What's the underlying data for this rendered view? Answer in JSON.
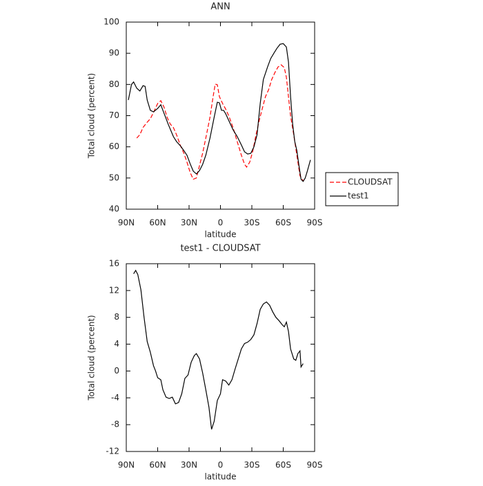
{
  "chart_data": [
    {
      "type": "line",
      "title": "ANN",
      "xlabel": "latitude",
      "ylabel": "Total cloud (percent)",
      "xlim": [
        90,
        -90
      ],
      "xticks": [
        {
          "value": 90,
          "label": "90N"
        },
        {
          "value": 60,
          "label": "60N"
        },
        {
          "value": 30,
          "label": "30N"
        },
        0,
        {
          "value": -30,
          "label": "30S"
        },
        {
          "value": -60,
          "label": "60S"
        },
        {
          "value": -90,
          "label": "90S"
        }
      ],
      "ylim": [
        40,
        100
      ],
      "yticks": [
        40,
        50,
        60,
        70,
        80,
        90,
        100
      ],
      "legend": "right",
      "series": [
        {
          "name": "CLOUDSAT",
          "color": "#ff0000",
          "dashed": true,
          "x": [
            80,
            77,
            74,
            70,
            67,
            64,
            60,
            57,
            54,
            51,
            48,
            45,
            42,
            38,
            35,
            32,
            29,
            26,
            23,
            20,
            17,
            14,
            10,
            7,
            5,
            3,
            1,
            -2,
            -5,
            -8,
            -12,
            -16,
            -20,
            -23,
            -25,
            -28,
            -31,
            -34,
            -37,
            -40,
            -43,
            -46,
            -49,
            -52,
            -55,
            -58,
            -61,
            -63,
            -65,
            -67,
            -70,
            -73,
            -76,
            -79
          ],
          "values": [
            62.8,
            63.9,
            66.2,
            67.9,
            69,
            71,
            73.9,
            74.8,
            72.8,
            69.5,
            67.3,
            66.2,
            63.9,
            60.2,
            58,
            55.1,
            51.8,
            49.6,
            50,
            54,
            58,
            62.8,
            69.5,
            76.1,
            80.1,
            79.9,
            76.1,
            73.9,
            72.1,
            69.9,
            66.2,
            61.7,
            57.3,
            54.4,
            53.5,
            55.1,
            58.8,
            63.9,
            68.4,
            72.3,
            76.1,
            78.3,
            81.6,
            83.8,
            85.6,
            86.3,
            85.4,
            82.3,
            76.1,
            69.9,
            63.9,
            57.3,
            50.7,
            49.1
          ]
        },
        {
          "name": "test1",
          "color": "#000000",
          "dashed": false,
          "x": [
            88,
            85,
            83,
            80,
            77,
            74,
            72,
            70,
            67,
            64,
            60,
            57,
            55,
            50,
            45,
            42,
            38,
            35,
            32,
            29,
            26,
            23,
            20,
            17,
            14,
            10,
            6,
            3,
            1,
            -1,
            -3,
            -5,
            -8,
            -12,
            -16,
            -20,
            -23,
            -26,
            -29,
            -32,
            -35,
            -38,
            -41,
            -45,
            -48,
            -51,
            -54,
            -57,
            -60,
            -63,
            -65,
            -67,
            -69,
            -71,
            -73,
            -75,
            -77,
            -79,
            -81,
            -83,
            -86
          ],
          "values": [
            75,
            80,
            80.8,
            78.8,
            77.9,
            79.6,
            79.4,
            75,
            71.7,
            71.2,
            72.3,
            73.5,
            71.7,
            67.3,
            63.3,
            61.7,
            60.2,
            58.8,
            57.3,
            54.6,
            52.2,
            51.3,
            52.4,
            54.4,
            57.3,
            62.8,
            69.5,
            74.3,
            74.1,
            71.7,
            71.7,
            70.6,
            68.4,
            65.5,
            63.3,
            60.6,
            58.4,
            57.7,
            57.9,
            60,
            63.9,
            73.9,
            81.6,
            85.6,
            88.3,
            90,
            91.6,
            92.9,
            93.1,
            92,
            87.2,
            76.1,
            67.3,
            61.7,
            58.8,
            54,
            49.6,
            48.9,
            50,
            52.2,
            55.8
          ]
        }
      ]
    },
    {
      "type": "line",
      "title": "test1 - CLOUDSAT",
      "xlabel": "latitude",
      "ylabel": "Total cloud (percent)",
      "xlim": [
        90,
        -90
      ],
      "xticks": [
        {
          "value": 90,
          "label": "90N"
        },
        {
          "value": 60,
          "label": "60N"
        },
        {
          "value": 30,
          "label": "30N"
        },
        0,
        {
          "value": -30,
          "label": "30S"
        },
        {
          "value": -60,
          "label": "60S"
        },
        {
          "value": -90,
          "label": "90S"
        }
      ],
      "ylim": [
        -12,
        16
      ],
      "yticks": [
        -12,
        -8,
        -4,
        0,
        4,
        8,
        12,
        16
      ],
      "series": [
        {
          "color": "#000000",
          "x": [
            83,
            81,
            79,
            76,
            73,
            70,
            67,
            64,
            62,
            60,
            57,
            55,
            52,
            49,
            46,
            43,
            40,
            37,
            34,
            31,
            28,
            25,
            23,
            20,
            17,
            14,
            11,
            8.5,
            6,
            3,
            0,
            -2,
            -5,
            -8,
            -11,
            -14,
            -17,
            -20,
            -23,
            -26,
            -29,
            -32,
            -35,
            -38,
            -41,
            -44,
            -47,
            -50,
            -53,
            -56,
            -59,
            -61,
            -63,
            -65,
            -67,
            -70,
            -72,
            -74,
            -76,
            -77,
            -79
          ],
          "values": [
            14.5,
            15,
            14.4,
            12.1,
            8,
            4.4,
            2.8,
            0.8,
            0,
            -1,
            -1.3,
            -2.8,
            -3.9,
            -4.1,
            -3.9,
            -4.9,
            -4.7,
            -3.4,
            -1.1,
            -0.6,
            1.3,
            2.3,
            2.6,
            1.8,
            -0.3,
            -2.8,
            -5.4,
            -8.7,
            -7.5,
            -4.4,
            -3.4,
            -1.3,
            -1.5,
            -2.1,
            -1.3,
            0.3,
            1.8,
            3.3,
            4.1,
            4.3,
            4.7,
            5.4,
            7.1,
            9.2,
            10,
            10.3,
            9.8,
            8.8,
            8,
            7.5,
            6.9,
            6.6,
            7.3,
            5.9,
            3.3,
            1.8,
            1.6,
            2.6,
            3,
            0.6,
            1.1
          ]
        }
      ]
    }
  ]
}
